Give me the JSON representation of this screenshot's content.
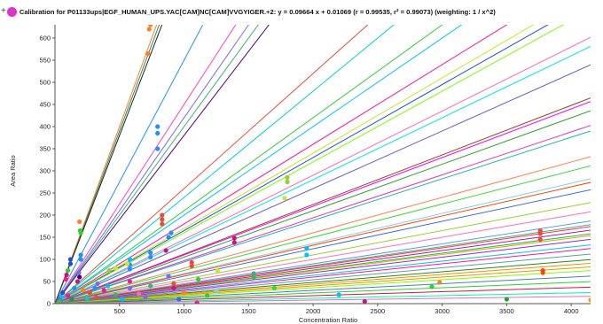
{
  "header": {
    "expand_symbol": "+",
    "marker_color": "#e033c9",
    "title": "Calibration for P01133ups|EGF_HUMAN_UPS.YAC[CAM]NC[CAM]VVGYIGER.+2: y = 0.09664 x + 0.01069 (r = 0.99535, r² = 0.99073)  (weighting: 1 / x^2)"
  },
  "chart_data": {
    "type": "scatter",
    "xlabel": "Concentration Ratio",
    "ylabel": "Area Ratio",
    "xlim": [
      0,
      4150
    ],
    "ylim": [
      0,
      630
    ],
    "xticks": [
      500,
      1000,
      1500,
      2000,
      2500,
      3000,
      3500,
      4000
    ],
    "yticks": [
      0,
      50,
      100,
      150,
      200,
      250,
      300,
      350,
      400,
      450,
      500,
      550,
      600
    ],
    "grid": false,
    "lines": [
      {
        "slope": 0.8,
        "color": "#ff7f27"
      },
      {
        "slope": 0.78,
        "color": "#2e8b57"
      },
      {
        "slope": 0.76,
        "color": "#222222"
      },
      {
        "slope": 0.55,
        "color": "#1e90ff"
      },
      {
        "slope": 0.45,
        "color": "#ff3fbf"
      },
      {
        "slope": 0.42,
        "color": "#7b68ee"
      },
      {
        "slope": 0.4,
        "color": "#3cb371"
      },
      {
        "slope": 0.38,
        "color": "#4b0082"
      },
      {
        "slope": 0.26,
        "color": "#e74c3c"
      },
      {
        "slope": 0.24,
        "color": "#00ced1"
      },
      {
        "slope": 0.21,
        "color": "#32cd32"
      },
      {
        "slope": 0.2,
        "color": "#00bfff"
      },
      {
        "slope": 0.18,
        "color": "#ff1493"
      },
      {
        "slope": 0.17,
        "color": "#c8e62d"
      },
      {
        "slope": 0.165,
        "color": "#1f4fd6"
      },
      {
        "slope": 0.16,
        "color": "#7cfc00"
      },
      {
        "slope": 0.145,
        "color": "#ff69b4"
      },
      {
        "slope": 0.14,
        "color": "#00e5ee"
      },
      {
        "slope": 0.13,
        "color": "#6a5acd"
      },
      {
        "slope": 0.112,
        "color": "#8b4513"
      },
      {
        "slope": 0.11,
        "color": "#ff00ff"
      },
      {
        "slope": 0.105,
        "color": "#2ca02c"
      },
      {
        "slope": 0.097,
        "color": "#e033c9"
      },
      {
        "slope": 0.094,
        "color": "#20b2aa"
      },
      {
        "slope": 0.08,
        "color": "#ff7f50"
      },
      {
        "slope": 0.075,
        "color": "#3fd43f"
      },
      {
        "slope": 0.068,
        "color": "#87ceeb"
      },
      {
        "slope": 0.066,
        "color": "#ff4500"
      },
      {
        "slope": 0.062,
        "color": "#4169e1"
      },
      {
        "slope": 0.055,
        "color": "#9acd32"
      },
      {
        "slope": 0.05,
        "color": "#ff6eb4"
      },
      {
        "slope": 0.045,
        "color": "#6495ed"
      },
      {
        "slope": 0.043,
        "color": "#3cb371"
      },
      {
        "slope": 0.042,
        "color": "#ff2d55"
      },
      {
        "slope": 0.04,
        "color": "#c71585"
      },
      {
        "slope": 0.038,
        "color": "#00c957"
      },
      {
        "slope": 0.037,
        "color": "#ff9900"
      },
      {
        "slope": 0.035,
        "color": "#8a2be2"
      },
      {
        "slope": 0.032,
        "color": "#00bfff"
      },
      {
        "slope": 0.03,
        "color": "#ff1493"
      },
      {
        "slope": 0.027,
        "color": "#5f9ea0"
      },
      {
        "slope": 0.024,
        "color": "#228b22"
      },
      {
        "slope": 0.022,
        "color": "#ff8c00"
      },
      {
        "slope": 0.02,
        "color": "#d2a000"
      },
      {
        "slope": 0.018,
        "color": "#7fff00"
      },
      {
        "slope": 0.015,
        "color": "#4682b4"
      },
      {
        "slope": 0.012,
        "color": "#32cd32"
      },
      {
        "slope": 0.009,
        "color": "#dc143c"
      },
      {
        "slope": 0.006,
        "color": "#00fa9a"
      },
      {
        "slope": 0.004,
        "color": "#da70d6"
      }
    ],
    "points": [
      {
        "x": 730,
        "y": 620,
        "color": "#ff7f27"
      },
      {
        "x": 740,
        "y": 630,
        "color": "#ff7f27"
      },
      {
        "x": 720,
        "y": 565,
        "color": "#ff7f27"
      },
      {
        "x": 795,
        "y": 400,
        "color": "#1e90ff"
      },
      {
        "x": 795,
        "y": 385,
        "color": "#1e90ff"
      },
      {
        "x": 795,
        "y": 350,
        "color": "#1e90ff"
      },
      {
        "x": 830,
        "y": 200,
        "color": "#e74c3c"
      },
      {
        "x": 830,
        "y": 190,
        "color": "#e74c3c"
      },
      {
        "x": 830,
        "y": 180,
        "color": "#e74c3c"
      },
      {
        "x": 190,
        "y": 185,
        "color": "#ff7f27"
      },
      {
        "x": 195,
        "y": 165,
        "color": "#32cd32"
      },
      {
        "x": 200,
        "y": 160,
        "color": "#32cd32"
      },
      {
        "x": 1800,
        "y": 285,
        "color": "#9acd32"
      },
      {
        "x": 1800,
        "y": 275,
        "color": "#9acd32"
      },
      {
        "x": 1780,
        "y": 238,
        "color": "#c8e62d"
      },
      {
        "x": 900,
        "y": 160,
        "color": "#1e90ff"
      },
      {
        "x": 880,
        "y": 150,
        "color": "#1e90ff"
      },
      {
        "x": 1390,
        "y": 148,
        "color": "#c71585"
      },
      {
        "x": 1390,
        "y": 138,
        "color": "#c71585"
      },
      {
        "x": 860,
        "y": 120,
        "color": "#c71585"
      },
      {
        "x": 1950,
        "y": 125,
        "color": "#00bfff"
      },
      {
        "x": 1950,
        "y": 110,
        "color": "#00bfff"
      },
      {
        "x": 3760,
        "y": 165,
        "color": "#e74c3c"
      },
      {
        "x": 3760,
        "y": 158,
        "color": "#e74c3c"
      },
      {
        "x": 3760,
        "y": 145,
        "color": "#e74c3c"
      },
      {
        "x": 3780,
        "y": 75,
        "color": "#ff4500"
      },
      {
        "x": 3780,
        "y": 70,
        "color": "#ff4500"
      },
      {
        "x": 1060,
        "y": 93,
        "color": "#e74c3c"
      },
      {
        "x": 1060,
        "y": 85,
        "color": "#e74c3c"
      },
      {
        "x": 1260,
        "y": 75,
        "color": "#c8e62d"
      },
      {
        "x": 1540,
        "y": 68,
        "color": "#3cb371"
      },
      {
        "x": 1540,
        "y": 60,
        "color": "#3cb371"
      },
      {
        "x": 1110,
        "y": 55,
        "color": "#32cd32"
      },
      {
        "x": 2980,
        "y": 48,
        "color": "#ff7f27"
      },
      {
        "x": 2920,
        "y": 38,
        "color": "#32cd32"
      },
      {
        "x": 4150,
        "y": 8,
        "color": "#ff9900"
      },
      {
        "x": 580,
        "y": 100,
        "color": "#00bfff"
      },
      {
        "x": 580,
        "y": 88,
        "color": "#1e90ff"
      },
      {
        "x": 580,
        "y": 78,
        "color": "#1e90ff"
      },
      {
        "x": 580,
        "y": 50,
        "color": "#ff1493"
      },
      {
        "x": 580,
        "y": 35,
        "color": "#7b68ee"
      },
      {
        "x": 740,
        "y": 115,
        "color": "#1e90ff"
      },
      {
        "x": 740,
        "y": 105,
        "color": "#1e90ff"
      },
      {
        "x": 740,
        "y": 40,
        "color": "#3cb371"
      },
      {
        "x": 920,
        "y": 45,
        "color": "#e74c3c"
      },
      {
        "x": 920,
        "y": 35,
        "color": "#c71585"
      },
      {
        "x": 880,
        "y": 62,
        "color": "#7b68ee"
      },
      {
        "x": 470,
        "y": 80,
        "color": "#c8e62d"
      },
      {
        "x": 420,
        "y": 75,
        "color": "#9acd32"
      },
      {
        "x": 560,
        "y": 90,
        "color": "#c8e62d"
      },
      {
        "x": 410,
        "y": 40,
        "color": "#00bfff"
      },
      {
        "x": 380,
        "y": 30,
        "color": "#ff1493"
      },
      {
        "x": 330,
        "y": 45,
        "color": "#7b68ee"
      },
      {
        "x": 310,
        "y": 35,
        "color": "#1e90ff"
      },
      {
        "x": 270,
        "y": 25,
        "color": "#e74c3c"
      },
      {
        "x": 200,
        "y": 110,
        "color": "#1e90ff"
      },
      {
        "x": 200,
        "y": 100,
        "color": "#1e90ff"
      },
      {
        "x": 120,
        "y": 100,
        "color": "#1f4fd6"
      },
      {
        "x": 120,
        "y": 90,
        "color": "#1f4fd6"
      },
      {
        "x": 100,
        "y": 75,
        "color": "#32cd32"
      },
      {
        "x": 90,
        "y": 65,
        "color": "#c71585"
      },
      {
        "x": 85,
        "y": 55,
        "color": "#ff1493"
      },
      {
        "x": 185,
        "y": 70,
        "color": "#7b68ee"
      },
      {
        "x": 190,
        "y": 60,
        "color": "#4b0082"
      },
      {
        "x": 175,
        "y": 50,
        "color": "#c71585"
      },
      {
        "x": 150,
        "y": 35,
        "color": "#1e90ff"
      },
      {
        "x": 220,
        "y": 30,
        "color": "#ff7f27"
      },
      {
        "x": 60,
        "y": 25,
        "color": "#1f4fd6"
      },
      {
        "x": 50,
        "y": 15,
        "color": "#00bfff"
      },
      {
        "x": 40,
        "y": 8,
        "color": "#7b68ee"
      },
      {
        "x": 30,
        "y": 4,
        "color": "#32cd32"
      },
      {
        "x": 100,
        "y": 18,
        "color": "#ff1493"
      },
      {
        "x": 130,
        "y": 10,
        "color": "#2e8b57"
      },
      {
        "x": 250,
        "y": 12,
        "color": "#00ced1"
      },
      {
        "x": 320,
        "y": 14,
        "color": "#e74c3c"
      },
      {
        "x": 470,
        "y": 20,
        "color": "#3cb371"
      },
      {
        "x": 520,
        "y": 10,
        "color": "#00bfff"
      },
      {
        "x": 650,
        "y": 22,
        "color": "#ff69b4"
      },
      {
        "x": 700,
        "y": 15,
        "color": "#7b68ee"
      },
      {
        "x": 1000,
        "y": 25,
        "color": "#ff7f27"
      },
      {
        "x": 1100,
        "y": 2,
        "color": "#ff1493"
      },
      {
        "x": 1180,
        "y": 18,
        "color": "#32cd32"
      },
      {
        "x": 960,
        "y": 10,
        "color": "#4169e1"
      },
      {
        "x": 1250,
        "y": 30,
        "color": "#87ceeb"
      },
      {
        "x": 1700,
        "y": 35,
        "color": "#3fd43f"
      },
      {
        "x": 2200,
        "y": 20,
        "color": "#00bfff"
      },
      {
        "x": 2400,
        "y": 5,
        "color": "#c71585"
      },
      {
        "x": 3500,
        "y": 10,
        "color": "#2ca02c"
      }
    ]
  }
}
